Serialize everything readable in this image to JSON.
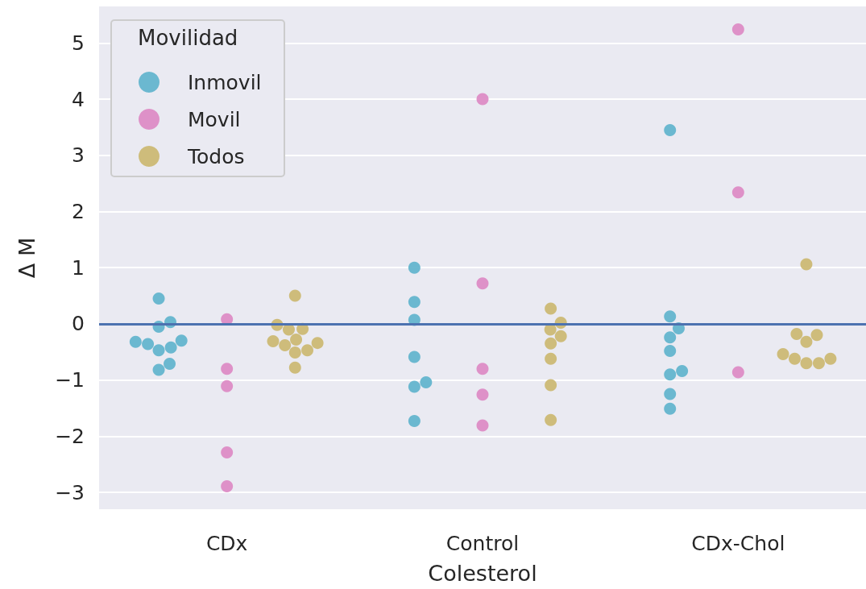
{
  "chart_data": {
    "type": "scatter",
    "xlabel": "Colesterol",
    "ylabel": "Δ M",
    "legend_title": "Movilidad",
    "categories": [
      "CDx",
      "Control",
      "CDx-Chol"
    ],
    "series": [
      {
        "name": "Inmovil",
        "color": "#64b5cd",
        "x": [
          "CDx",
          "CDx",
          "CDx",
          "CDx",
          "CDx",
          "CDx",
          "CDx",
          "CDx",
          "CDx",
          "CDx",
          "Control",
          "Control",
          "Control",
          "Control",
          "Control",
          "Control",
          "Control",
          "CDx-Chol",
          "CDx-Chol",
          "CDx-Chol",
          "CDx-Chol",
          "CDx-Chol",
          "CDx-Chol",
          "CDx-Chol",
          "CDx-Chol",
          "CDx-Chol"
        ],
        "values": [
          0.45,
          0.03,
          -0.05,
          -0.3,
          -0.42,
          -0.47,
          -0.36,
          -0.32,
          -0.71,
          -0.82,
          1.0,
          0.39,
          0.07,
          -0.59,
          -1.04,
          -1.12,
          -1.73,
          3.45,
          0.13,
          -0.08,
          -0.24,
          -0.48,
          -0.84,
          -0.9,
          -1.25,
          -1.51
        ]
      },
      {
        "name": "Movil",
        "color": "#dd8cc5",
        "x": [
          "CDx",
          "CDx",
          "CDx",
          "CDx",
          "CDx",
          "Control",
          "Control",
          "Control",
          "Control",
          "Control",
          "CDx-Chol",
          "CDx-Chol",
          "CDx-Chol"
        ],
        "values": [
          0.08,
          -0.8,
          -1.11,
          -2.29,
          -2.89,
          4.0,
          0.72,
          -0.8,
          -1.26,
          -1.81,
          5.24,
          2.34,
          -0.86
        ]
      },
      {
        "name": "Todos",
        "color": "#ccb974",
        "x": [
          "CDx",
          "CDx",
          "CDx",
          "CDx",
          "CDx",
          "CDx",
          "CDx",
          "CDx",
          "CDx",
          "CDx",
          "CDx",
          "Control",
          "Control",
          "Control",
          "Control",
          "Control",
          "Control",
          "Control",
          "Control",
          "CDx-Chol",
          "CDx-Chol",
          "CDx-Chol",
          "CDx-Chol",
          "CDx-Chol",
          "CDx-Chol",
          "CDx-Chol",
          "CDx-Chol",
          "CDx-Chol"
        ],
        "values": [
          0.5,
          -0.02,
          -0.1,
          -0.09,
          -0.28,
          -0.31,
          -0.38,
          -0.34,
          -0.47,
          -0.51,
          -0.78,
          0.27,
          0.02,
          -0.1,
          -0.22,
          -0.35,
          -0.62,
          -1.09,
          -1.71,
          1.06,
          -0.2,
          -0.18,
          -0.32,
          -0.54,
          -0.7,
          -0.7,
          -0.62,
          -0.62
        ]
      }
    ],
    "ylim": [
      -3.3,
      5.65
    ],
    "yticks": [
      {
        "value": -3,
        "label": "−3"
      },
      {
        "value": -2,
        "label": "−2"
      },
      {
        "value": -1,
        "label": "−1"
      },
      0,
      1,
      2,
      3,
      4,
      5
    ],
    "ref_lines": [
      {
        "axis": "y",
        "value": 0,
        "label": null,
        "color": "#4c72b0"
      }
    ],
    "grid": "y",
    "legend": "top left",
    "marker": "circle"
  }
}
